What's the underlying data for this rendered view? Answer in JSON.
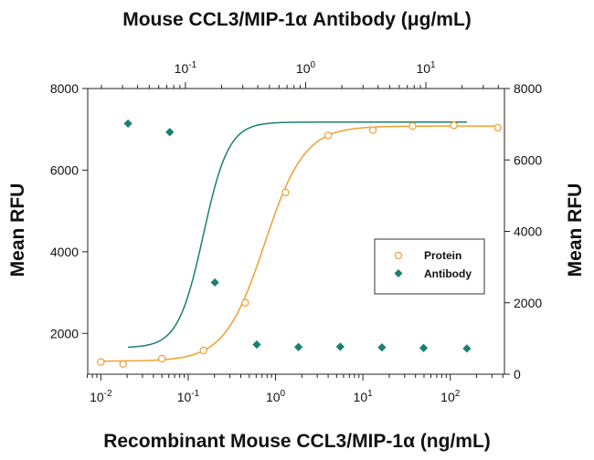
{
  "chart_data": {
    "type": "scatter",
    "title": "Mouse CCL3/MIP-1α Antibody (μg/mL)",
    "xlabel": "Recombinant Mouse CCL3/MIP-1α (ng/mL)",
    "ylabel_left": "Mean RFU",
    "ylabel_right": "Mean RFU",
    "x_scale": "log",
    "x_ticks": [
      {
        "base": "10",
        "exp": "-2",
        "value": 0.01
      },
      {
        "base": "10",
        "exp": "-1",
        "value": 0.1
      },
      {
        "base": "10",
        "exp": "0",
        "value": 1
      },
      {
        "base": "10",
        "exp": "1",
        "value": 10
      },
      {
        "base": "10",
        "exp": "2",
        "value": 100
      }
    ],
    "x_top_ticks": [
      {
        "base": "10",
        "exp": "-1",
        "value": 0.1
      },
      {
        "base": "10",
        "exp": "0",
        "value": 1
      },
      {
        "base": "10",
        "exp": "1",
        "value": 10
      }
    ],
    "x_top_range": [
      0.0154,
      45
    ],
    "ylim_left": [
      1000,
      8000
    ],
    "ylim_right": [
      0,
      8000
    ],
    "y_left_ticks": [
      "2000",
      "4000",
      "6000",
      "8000"
    ],
    "y_right_ticks": [
      "0",
      "2000",
      "4000",
      "6000",
      "8000"
    ],
    "grid": false,
    "legend_position": "right",
    "series": [
      {
        "name": "Protein",
        "axis": "left",
        "marker": "open-circle",
        "color": "#f0a030",
        "x": [
          0.01,
          0.018,
          0.05,
          0.15,
          0.45,
          1.3,
          4,
          13,
          37,
          110,
          350
        ],
        "y": [
          1300,
          1250,
          1380,
          1580,
          2750,
          5450,
          6850,
          6980,
          7080,
          7100,
          7040
        ],
        "fit": {
          "bottom": 1320,
          "top": 7080,
          "ec50": 0.75,
          "hill": 1.9
        }
      },
      {
        "name": "Antibody",
        "axis": "right",
        "marker": "filled-diamond",
        "color": "#1a7f72",
        "x": [
          0.0205,
          0.0615,
          0.202,
          0.61,
          1.83,
          5.5,
          16.5,
          49.5,
          155
        ],
        "y": [
          7020,
          6780,
          2570,
          830,
          760,
          770,
          750,
          735,
          720
        ],
        "fit": {
          "bottom": 740,
          "top": 7060,
          "ec50": 0.149,
          "hill": 3.0
        }
      }
    ]
  }
}
